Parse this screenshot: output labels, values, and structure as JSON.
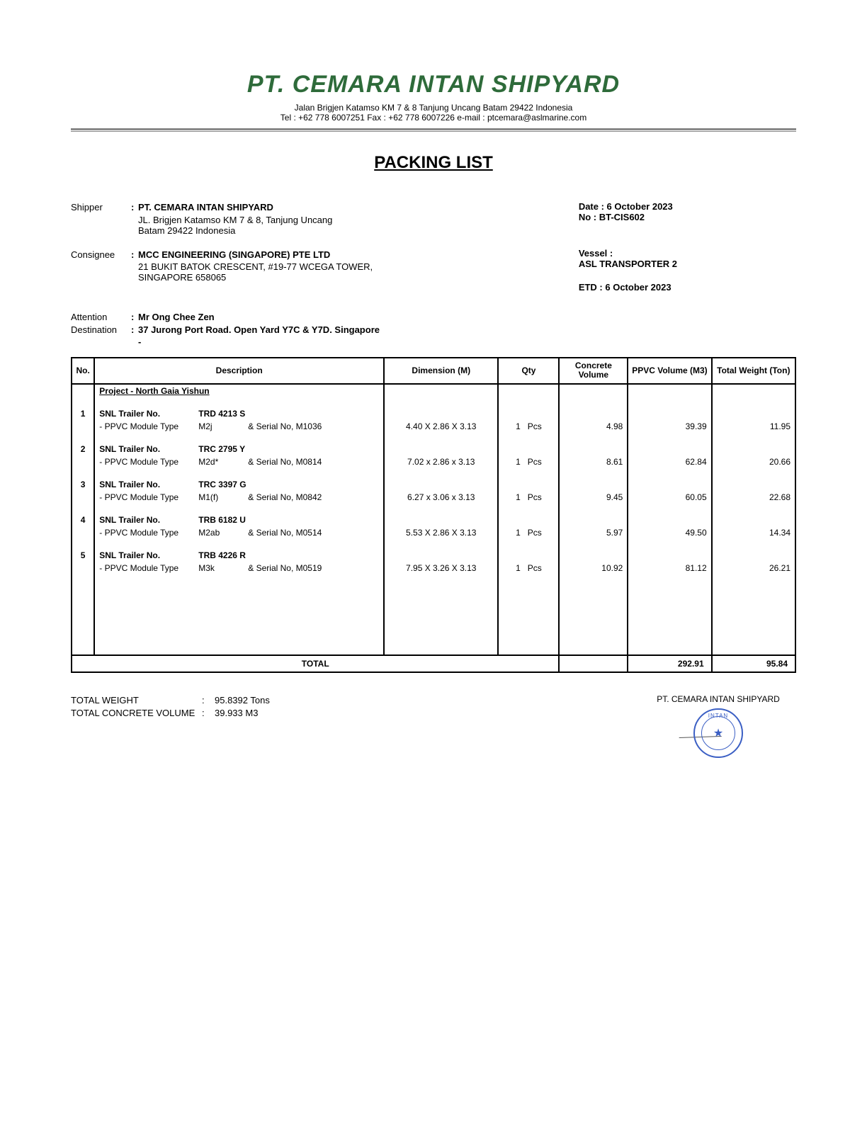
{
  "header": {
    "company_name": "PT. CEMARA INTAN SHIPYARD",
    "company_name_color": "#2e6b3a",
    "address_line": "Jalan Brigjen Katamso KM 7 & 8 Tanjung Uncang Batam 29422 Indonesia",
    "contact_line": "Tel : +62 778 6007251 Fax : +62 778 6007226 e-mail : ptcemara@aslmarine.com"
  },
  "doc_title": "PACKING LIST",
  "shipper": {
    "label": "Shipper",
    "name": "PT. CEMARA INTAN SHIPYARD",
    "addr1": "JL. Brigjen Katamso KM 7 & 8, Tanjung Uncang",
    "addr2": "Batam 29422 Indonesia"
  },
  "consignee": {
    "label": "Consignee",
    "name": "MCC ENGINEERING (SINGAPORE) PTE LTD",
    "addr1": "21 BUKIT BATOK CRESCENT, #19-77 WCEGA TOWER,",
    "addr2": "SINGAPORE 658065"
  },
  "right_info": {
    "date_label": "Date : ",
    "date_value": "6 October 2023",
    "no_label": "No : ",
    "no_value": "BT-CIS602",
    "vessel_label": "Vessel :",
    "vessel_value": "ASL TRANSPORTER 2",
    "etd_label": "ETD : ",
    "etd_value": "6 October 2023"
  },
  "attention": {
    "label": "Attention",
    "value": "Mr Ong Chee Zen"
  },
  "destination": {
    "label": "Destination",
    "value": "37 Jurong Port Road. Open Yard Y7C & Y7D. Singapore"
  },
  "table": {
    "headers": {
      "no": "No.",
      "desc": "Description",
      "dim": "Dimension (M)",
      "qty": "Qty",
      "conc": "Concrete Volume",
      "ppvc": "PPVC Volume (M3)",
      "wt": "Total Weight (Ton)"
    },
    "project_title": "Project - North  Gaia Yishun",
    "lbl_trailer": "SNL Trailer No.",
    "lbl_module": "- PPVC Module Type",
    "lbl_serial_prefix": "& Serial No, ",
    "unit": "Pcs",
    "rows": [
      {
        "no": "1",
        "trailer": "TRD 4213 S",
        "mod": "M2j",
        "serial": "M1036",
        "dim": "4.40 X 2.86 X 3.13",
        "qty": "1",
        "conc": "4.98",
        "ppvc": "39.39",
        "wt": "11.95"
      },
      {
        "no": "2",
        "trailer": "TRC 2795 Y",
        "mod": "M2d*",
        "serial": "M0814",
        "dim": "7.02 x 2.86 x 3.13",
        "qty": "1",
        "conc": "8.61",
        "ppvc": "62.84",
        "wt": "20.66"
      },
      {
        "no": "3",
        "trailer": "TRC 3397 G",
        "mod": "M1(f)",
        "serial": "M0842",
        "dim": "6.27 x 3.06 x 3.13",
        "qty": "1",
        "conc": "9.45",
        "ppvc": "60.05",
        "wt": "22.68"
      },
      {
        "no": "4",
        "trailer": "TRB 6182 U",
        "mod": "M2ab",
        "serial": "M0514",
        "dim": "5.53 X 2.86 X 3.13",
        "qty": "1",
        "conc": "5.97",
        "ppvc": "49.50",
        "wt": "14.34"
      },
      {
        "no": "5",
        "trailer": "TRB 4226 R",
        "mod": "M3k",
        "serial": "M0519",
        "dim": "7.95 X 3.26 X 3.13",
        "qty": "1",
        "conc": "10.92",
        "ppvc": "81.12",
        "wt": "26.21"
      }
    ],
    "total_label": "TOTAL",
    "total_ppvc": "292.91",
    "total_wt": "95.84"
  },
  "footer": {
    "total_weight_label": "TOTAL WEIGHT",
    "total_weight_value": "95.8392 Tons",
    "total_conc_label": "TOTAL CONCRETE VOLUME",
    "total_conc_value": "39.933 M3",
    "sig_company": "PT. CEMARA INTAN SHIPYARD",
    "stamp_top": "INTAN",
    "stamp_bottom": "★"
  }
}
